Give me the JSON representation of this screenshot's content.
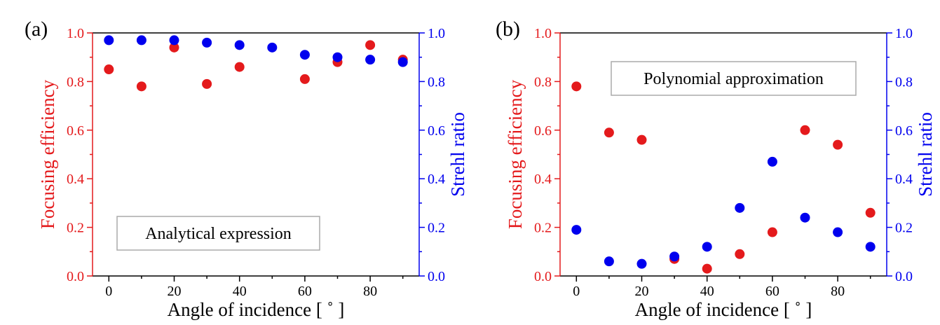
{
  "colors": {
    "efficiency": "#e41a1c",
    "strehl": "#0000ee",
    "axis": "#000000",
    "legend_border": "#aaaaaa"
  },
  "chart_data": [
    {
      "type": "scatter",
      "panel_label": "(a)",
      "annotation": "Analytical expression",
      "xlabel": "Angle of incidence [ ˚ ]",
      "ylabel_left": "Focusing efficiency",
      "ylabel_right": "Strehl ratio",
      "xlim": [
        -5,
        95
      ],
      "ylim_left": [
        0,
        1
      ],
      "ylim_right": [
        0,
        1
      ],
      "x_ticks": [
        "0",
        "20",
        "40",
        "60",
        "80"
      ],
      "y_ticks": [
        "0.0",
        "0.2",
        "0.4",
        "0.6",
        "0.8",
        "1.0"
      ],
      "series": [
        {
          "name": "Focusing efficiency",
          "axis": "left",
          "x": [
            0,
            10,
            20,
            30,
            40,
            60,
            70,
            80,
            90
          ],
          "y": [
            0.85,
            0.78,
            0.94,
            0.79,
            0.86,
            0.81,
            0.88,
            0.95,
            0.89
          ]
        },
        {
          "name": "Strehl ratio",
          "axis": "right",
          "x": [
            0,
            10,
            20,
            30,
            40,
            50,
            60,
            70,
            80,
            90
          ],
          "y": [
            0.97,
            0.97,
            0.97,
            0.96,
            0.95,
            0.94,
            0.91,
            0.9,
            0.89,
            0.88
          ]
        }
      ]
    },
    {
      "type": "scatter",
      "panel_label": "(b)",
      "annotation": "Polynomial approximation",
      "xlabel": "Angle of incidence [ ˚ ]",
      "ylabel_left": "Focusing efficiency",
      "ylabel_right": "Strehl ratio",
      "xlim": [
        -5,
        95
      ],
      "ylim_left": [
        0,
        1
      ],
      "ylim_right": [
        0,
        1
      ],
      "x_ticks": [
        "0",
        "20",
        "40",
        "60",
        "80"
      ],
      "y_ticks": [
        "0.0",
        "0.2",
        "0.4",
        "0.6",
        "0.8",
        "1.0"
      ],
      "series": [
        {
          "name": "Focusing efficiency",
          "axis": "left",
          "x": [
            0,
            10,
            20,
            30,
            40,
            50,
            60,
            70,
            80,
            90
          ],
          "y": [
            0.78,
            0.59,
            0.56,
            0.07,
            0.03,
            0.09,
            0.18,
            0.6,
            0.54,
            0.26
          ]
        },
        {
          "name": "Strehl ratio",
          "axis": "right",
          "x": [
            0,
            10,
            20,
            30,
            40,
            50,
            60,
            70,
            80,
            90
          ],
          "y": [
            0.19,
            0.06,
            0.05,
            0.08,
            0.12,
            0.28,
            0.47,
            0.24,
            0.18,
            0.12
          ]
        }
      ]
    }
  ]
}
